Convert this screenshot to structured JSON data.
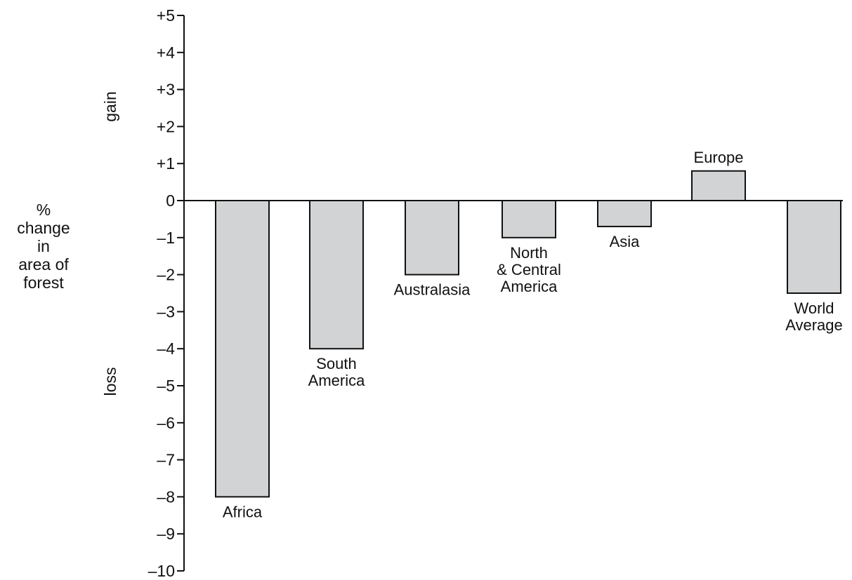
{
  "chart_data": {
    "type": "bar",
    "categories": [
      "Africa",
      "South America",
      "Australasia",
      "North & Central America",
      "Asia",
      "Europe",
      "World Average"
    ],
    "category_label_lines": [
      [
        "Africa"
      ],
      [
        "South",
        "America"
      ],
      [
        "Australasia"
      ],
      [
        "North",
        "& Central",
        "America"
      ],
      [
        "Asia"
      ],
      [
        "Europe"
      ],
      [
        "World",
        "Average"
      ]
    ],
    "values": [
      -8,
      -4,
      -2,
      -1,
      -0.7,
      0.8,
      -2.5
    ],
    "ylim": [
      -10,
      5
    ],
    "yticks": [
      5,
      4,
      3,
      2,
      1,
      0,
      -1,
      -2,
      -3,
      -4,
      -5,
      -6,
      -7,
      -8,
      -9,
      -10
    ],
    "ytick_labels": [
      "+5",
      "+4",
      "+3",
      "+2",
      "+1",
      "0",
      "–1",
      "–2",
      "–3",
      "–4",
      "–5",
      "–6",
      "–7",
      "–8",
      "–9",
      "–10"
    ],
    "ylabel_lines": [
      "%",
      "change",
      "in",
      "area of",
      "forest"
    ],
    "gain_label": "gain",
    "loss_label": "loss",
    "bar_color": "#d1d3d4",
    "grid": false,
    "legend": "none"
  }
}
